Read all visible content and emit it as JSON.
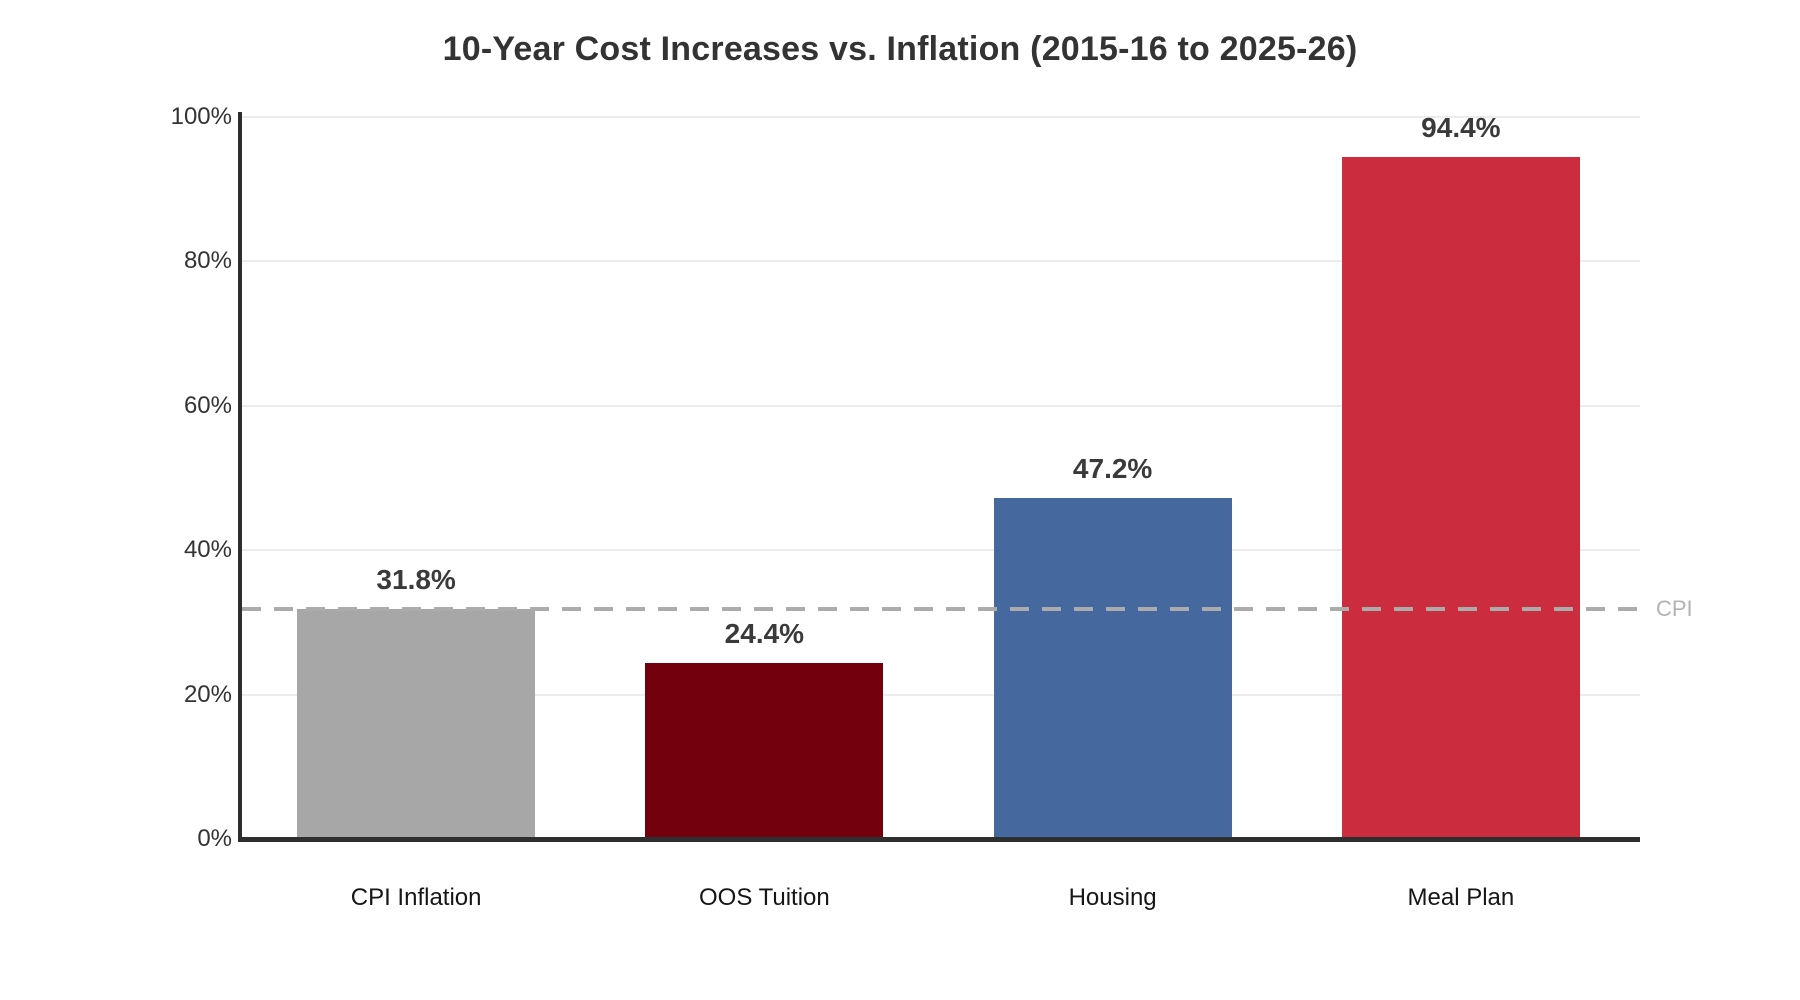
{
  "page": {
    "background_color": "#ffffff"
  },
  "chart_data": {
    "type": "bar",
    "title": "10-Year Cost Increases vs. Inflation (2015-16 to 2025-26)",
    "categories": [
      "CPI Inflation",
      "OOS Tuition",
      "Housing",
      "Meal Plan"
    ],
    "values": [
      31.8,
      24.4,
      47.2,
      94.4
    ],
    "value_labels": [
      "31.8%",
      "24.4%",
      "47.2%",
      "94.4%"
    ],
    "bar_colors": [
      "#a7a7a7",
      "#73010d",
      "#45699e",
      "#cb2c3e"
    ],
    "xlabel": "",
    "ylabel": "",
    "ylim": [
      0,
      100
    ],
    "y_ticks": [
      0,
      20,
      40,
      60,
      80,
      100
    ],
    "y_tick_labels": [
      "0%",
      "20%",
      "40%",
      "60%",
      "80%",
      "100%"
    ],
    "grid": true,
    "gridline_color": "#ececec",
    "axis_color": "#2e2e2e",
    "legend": "none",
    "reference_line": {
      "value": 31.8,
      "label": "CPI",
      "style": "dashed",
      "line_color": "#ababab",
      "label_color": "#b3b3b3"
    }
  }
}
